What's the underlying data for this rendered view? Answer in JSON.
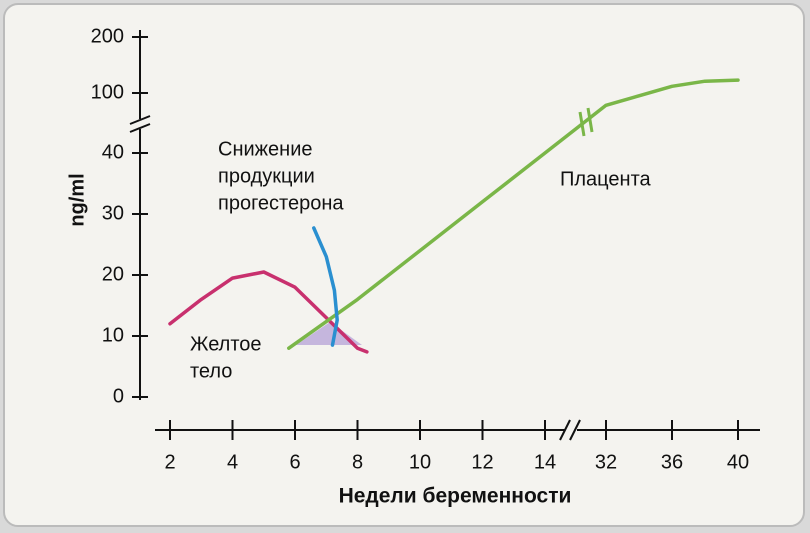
{
  "chart_data": {
    "type": "line",
    "xlabel": "Недели беременности",
    "ylabel": "ng/ml",
    "xsegments": [
      [
        2,
        14
      ],
      [
        32,
        40
      ]
    ],
    "ysegments": [
      [
        0,
        40
      ],
      [
        100,
        200
      ]
    ],
    "xticks": [
      2,
      4,
      6,
      8,
      10,
      12,
      14,
      32,
      36,
      40
    ],
    "yticks": [
      0,
      10,
      20,
      30,
      40,
      100,
      200
    ],
    "series": [
      {
        "color": "#c8306e",
        "x": [
          2,
          3,
          4,
          5,
          6,
          7,
          8,
          8.3
        ],
        "values": [
          12,
          16,
          19.5,
          20.5,
          18,
          13,
          8,
          7.4
        ]
      },
      {
        "color": "#7ab648",
        "x": [
          5.8,
          8,
          10,
          12,
          14,
          32,
          34,
          36,
          38,
          40
        ],
        "values": [
          8,
          16,
          24,
          32,
          40,
          78,
          95,
          112,
          121,
          123
        ]
      },
      {
        "color": "#2a8fd0",
        "x": [
          6.6,
          7,
          7.26,
          7.35,
          7.2
        ],
        "values": [
          27.7,
          23,
          17.5,
          12.6,
          8.5
        ]
      }
    ],
    "annotations": [
      {
        "lines": [
          "Снижение",
          "продукции",
          "прогестерона"
        ]
      },
      {
        "lines": [
          "Желтое",
          "тело"
        ]
      },
      {
        "lines": [
          "Плацента"
        ]
      }
    ]
  }
}
